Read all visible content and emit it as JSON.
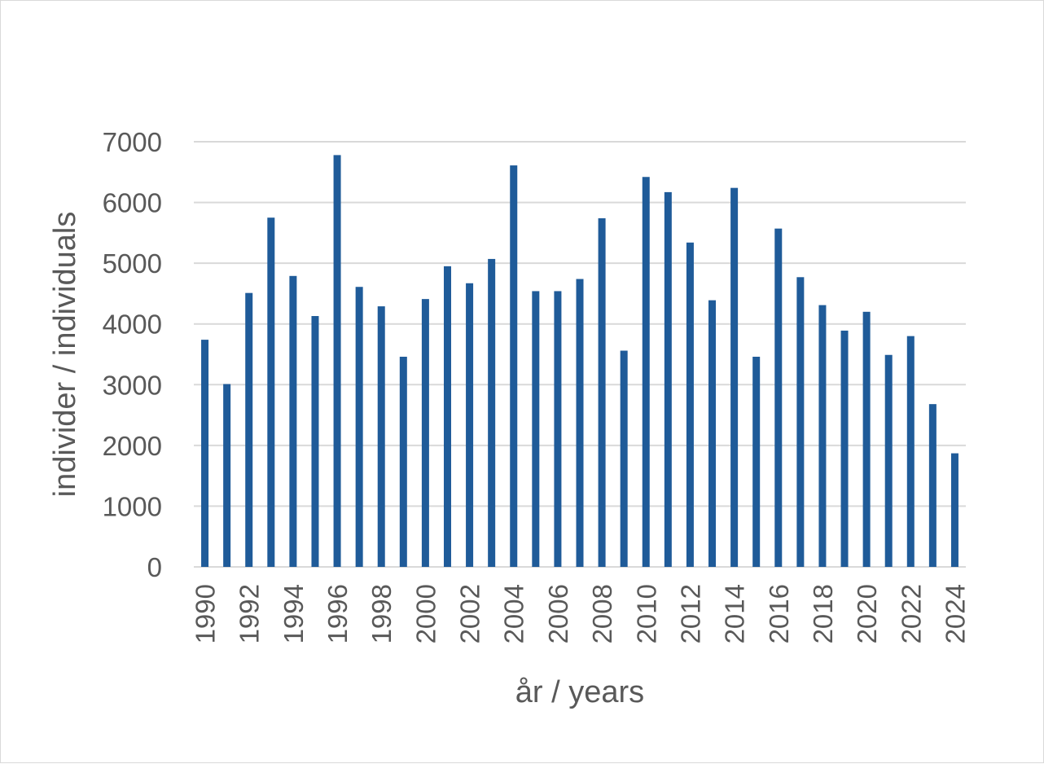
{
  "chart_data": {
    "type": "bar",
    "title": "",
    "xlabel": "år / years",
    "ylabel": "individer / individuals",
    "ylim": [
      0,
      7000
    ],
    "yticks": [
      0,
      1000,
      2000,
      3000,
      4000,
      5000,
      6000,
      7000
    ],
    "xtick_labels": [
      "1990",
      "1992",
      "1994",
      "1996",
      "1998",
      "2000",
      "2002",
      "2004",
      "2006",
      "2008",
      "2010",
      "2012",
      "2014",
      "2016",
      "2018",
      "2020",
      "2022",
      "2024"
    ],
    "grid": true,
    "legend": "none",
    "bar_color": "#1f5b99",
    "categories": [
      "1990",
      "1991",
      "1992",
      "1993",
      "1994",
      "1995",
      "1996",
      "1997",
      "1998",
      "1999",
      "2000",
      "2001",
      "2002",
      "2003",
      "2004",
      "2005",
      "2006",
      "2007",
      "2008",
      "2009",
      "2010",
      "2011",
      "2012",
      "2013",
      "2014",
      "2015",
      "2016",
      "2017",
      "2018",
      "2019",
      "2020",
      "2021",
      "2022",
      "2023",
      "2024"
    ],
    "values": [
      3740,
      3010,
      4510,
      5750,
      4790,
      4130,
      6780,
      4610,
      4290,
      3460,
      4410,
      4950,
      4670,
      5070,
      6610,
      4540,
      4540,
      4740,
      5740,
      3560,
      6420,
      6170,
      5340,
      4390,
      6240,
      3460,
      5570,
      4770,
      4310,
      3890,
      4200,
      3490,
      3800,
      2680,
      1870
    ]
  }
}
